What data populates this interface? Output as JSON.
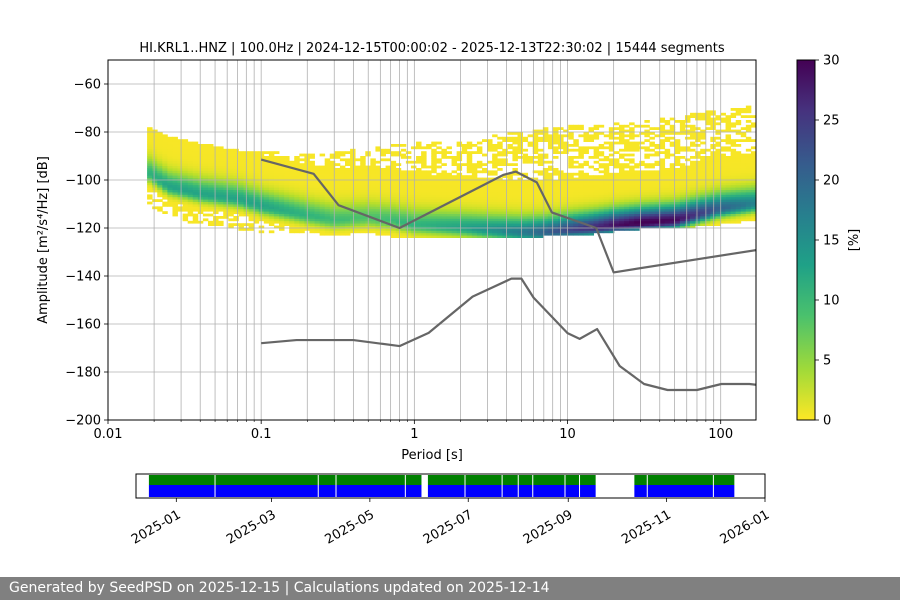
{
  "chart_data": [
    {
      "type": "heatmap",
      "title": "HI.KRL1..HNZ | 100.0Hz | 2024-12-15T00:00:02 - 2025-12-13T22:30:02 | 15444 segments",
      "xlabel": "Period [s]",
      "ylabel": "Amplitude [m²/s⁴/Hz] [dB]",
      "x_scale": "log",
      "xlim": [
        0.01,
        170
      ],
      "ylim": [
        -200,
        -50
      ],
      "x_ticks": [
        0.01,
        0.1,
        1,
        10,
        100
      ],
      "x_tick_labels": [
        "0.01",
        "0.1",
        "1",
        "10",
        "100"
      ],
      "y_ticks": [
        -200,
        -180,
        -160,
        -140,
        -120,
        -100,
        -80,
        -60
      ],
      "y_tick_labels": [
        "−200",
        "−180",
        "−160",
        "−140",
        "−120",
        "−100",
        "−80",
        "−60"
      ],
      "grid": true,
      "colormap": "viridis_r",
      "colorbar": {
        "label": "[%]",
        "range": [
          0,
          30
        ],
        "ticks": [
          0,
          5,
          10,
          15,
          20,
          25,
          30
        ],
        "tick_labels": [
          "0",
          "5",
          "10",
          "15",
          "20",
          "25",
          "30"
        ]
      },
      "density_profile": {
        "period": [
          0.018,
          0.025,
          0.04,
          0.07,
          0.1,
          0.2,
          0.3,
          0.5,
          0.7,
          1,
          2,
          3,
          5,
          7,
          10,
          15,
          20,
          30,
          50,
          100,
          170
        ],
        "mode_db": [
          -97,
          -103,
          -106,
          -108,
          -111,
          -115,
          -117,
          -116,
          -117,
          -119,
          -120,
          -121,
          -122,
          -122,
          -121,
          -120,
          -119,
          -118,
          -117,
          -112,
          -110
        ],
        "mode_pct": [
          10,
          12,
          12,
          12,
          12,
          10,
          9,
          8,
          9,
          10,
          12,
          14,
          17,
          20,
          23,
          26,
          28,
          30,
          29,
          20,
          16
        ],
        "spread_low_db": [
          -109,
          -115,
          -118,
          -120,
          -121,
          -122,
          -123,
          -123,
          -123,
          -124,
          -124,
          -124,
          -124,
          -123,
          -123,
          -122,
          -121,
          -120,
          -120,
          -118,
          -117
        ],
        "spread_high_db": [
          -78,
          -82,
          -85,
          -88,
          -88,
          -90,
          -89,
          -87,
          -86,
          -85,
          -84,
          -82,
          -80,
          -79,
          -78,
          -77,
          -77,
          -76,
          -74,
          -71,
          -69
        ]
      },
      "series": [
        {
          "name": "NHNM",
          "x": [
            0.1,
            0.22,
            0.32,
            0.8,
            3.8,
            4.6,
            6.3,
            7.9,
            15.4,
            20,
            354.8
          ],
          "y": [
            -91.5,
            -97.4,
            -110.5,
            -120,
            -97.9,
            -96.5,
            -101,
            -113.5,
            -120,
            -138.5,
            -126
          ]
        },
        {
          "name": "NLNM",
          "x": [
            0.1,
            0.17,
            0.4,
            0.8,
            1.24,
            2.4,
            4.3,
            5,
            6,
            10,
            12,
            15.6,
            21.9,
            31.6,
            45,
            70,
            101,
            154,
            328
          ],
          "y": [
            -168,
            -166.7,
            -166.7,
            -169.2,
            -163.7,
            -148.6,
            -141.1,
            -141.1,
            -149,
            -163.8,
            -166.2,
            -162.1,
            -177.5,
            -185,
            -187.5,
            -187.5,
            -185,
            -185,
            -187.5
          ]
        }
      ]
    },
    {
      "type": "timeline",
      "x_ticks": [
        "2025-01",
        "2025-03",
        "2025-05",
        "2025-07",
        "2025-09",
        "2025-11",
        "2026-01"
      ],
      "xlim": [
        "2024-12-07",
        "2026-01-01"
      ],
      "data_start": "2024-12-15",
      "data_end": "2025-12-13",
      "gaps": [
        [
          "2025-06-02",
          "2025-06-06"
        ],
        [
          "2025-09-18",
          "2025-10-12"
        ]
      ],
      "colors": {
        "top": "#008000",
        "bottom": "#0000ff"
      }
    }
  ],
  "footer": {
    "text": "Generated by SeedPSD on 2025-12-15 | Calculations updated on 2025-12-14"
  }
}
